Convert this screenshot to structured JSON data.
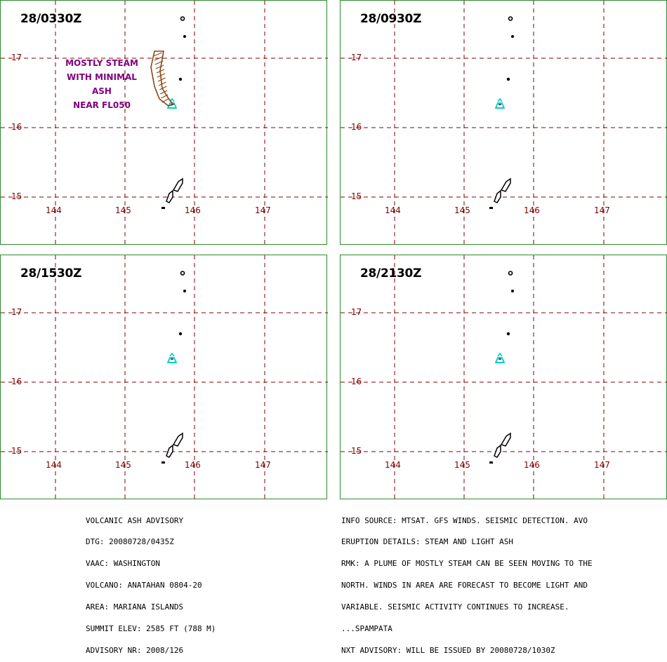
{
  "panels": [
    {
      "id": "p1",
      "time": "28/0330Z",
      "annotation": [
        "MOSTLY STEAM",
        "WITH MINIMAL ASH",
        "NEAR FL050"
      ],
      "plume": true
    },
    {
      "id": "p2",
      "time": "28/0930Z",
      "plume": false
    },
    {
      "id": "p3",
      "time": "28/1530Z",
      "plume": false
    },
    {
      "id": "p4",
      "time": "28/2130Z",
      "plume": false
    }
  ],
  "latitudes": [
    "17",
    "16",
    "15"
  ],
  "longitudes": [
    "144",
    "145",
    "146",
    "147"
  ],
  "colors": {
    "border": "#2e8b2e",
    "grid": "#800000",
    "volcano": "#00cccc",
    "plume": "#8b4513",
    "annotation": "#800080"
  },
  "advisory_left": [
    "VOLCANIC ASH ADVISORY",
    "DTG: 20080728/0435Z",
    "VAAC: WASHINGTON",
    "VOLCANO: ANATAHAN 0804-20",
    "AREA: MARIANA ISLANDS",
    "SUMMIT ELEV: 2585 FT (788 M)",
    "ADVISORY NR: 2008/126"
  ],
  "advisory_right": [
    "INFO SOURCE: MTSAT. GFS WINDS. SEISMIC DETECTION. AVO",
    "ERUPTION DETAILS: STEAM AND LIGHT ASH",
    "RMK: A PLUME OF MOSTLY STEAM CAN BE SEEN MOVING TO THE",
    "NORTH. WINDS IN AREA ARE FORECAST TO BECOME LIGHT AND",
    "VARIABLE. SEISMIC ACTIVITY CONTINUES TO INCREASE.",
    "...SPAMPATA",
    "NXT ADVISORY: WILL BE ISSUED BY 20080728/1030Z"
  ]
}
